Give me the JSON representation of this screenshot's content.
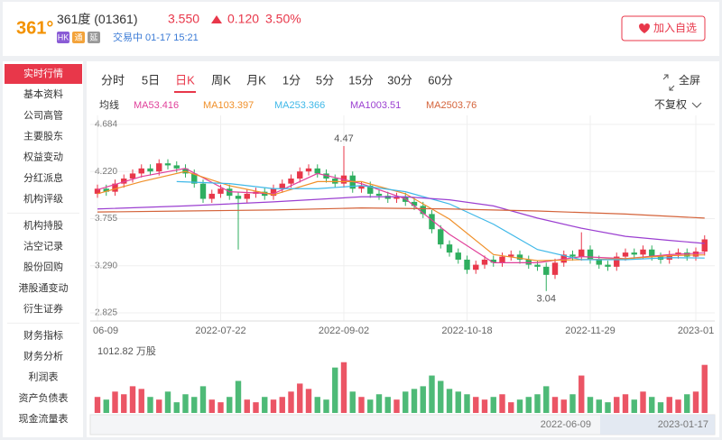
{
  "header": {
    "logo": "361°",
    "name": "361度",
    "code": "(01361)",
    "price": "3.550",
    "change": "0.120",
    "change_pct": "3.50%",
    "tags": [
      "HK",
      "通",
      "延"
    ],
    "status": "交易中 01-17 15:21",
    "button": "加入自选"
  },
  "sidebar": {
    "groups": [
      [
        "实时行情",
        "基本资料",
        "公司高管",
        "主要股东",
        "权益变动",
        "分红派息",
        "机构评级"
      ],
      [
        "机构持股",
        "沽空记录",
        "股份回购",
        "港股通变动",
        "衍生证券"
      ],
      [
        "财务指标",
        "财务分析",
        "利润表",
        "资产负债表",
        "现金流量表"
      ]
    ]
  },
  "tabs": {
    "items": [
      "分时",
      "5日",
      "日K",
      "周K",
      "月K",
      "1分",
      "5分",
      "15分",
      "30分",
      "60分"
    ],
    "fullscreen": "全屏",
    "ma_title": "均线",
    "adjust": "不复权"
  },
  "chart_data": {
    "type": "candlestick",
    "open": [
      4.0,
      4.05,
      4.02,
      4.1,
      4.15,
      4.2,
      4.25,
      4.22,
      4.3,
      4.28,
      4.25,
      4.2,
      4.1,
      3.95,
      4.0,
      4.05,
      3.98,
      3.95,
      4.0,
      4.02,
      3.98,
      4.05,
      4.1,
      4.15,
      4.22,
      4.25,
      4.2,
      4.15,
      4.1,
      4.18,
      4.05,
      4.08,
      4.0,
      3.98,
      3.95,
      3.97,
      3.92,
      3.88,
      3.8,
      3.65,
      3.5,
      3.42,
      3.35,
      3.25,
      3.3,
      3.35,
      3.32,
      3.38,
      3.4,
      3.35,
      3.3,
      3.28,
      3.2,
      3.32,
      3.4,
      3.38,
      3.45,
      3.35,
      3.3,
      3.28,
      3.38,
      3.42,
      3.4,
      3.45,
      3.38,
      3.35,
      3.4,
      3.42,
      3.38,
      3.43
    ],
    "high": [
      4.09,
      4.09,
      4.14,
      4.19,
      4.24,
      4.29,
      4.29,
      4.34,
      4.34,
      4.32,
      4.29,
      4.24,
      4.14,
      4.04,
      4.09,
      4.09,
      4.02,
      4.04,
      4.06,
      4.06,
      4.09,
      4.14,
      4.19,
      4.26,
      4.29,
      4.29,
      4.24,
      4.19,
      4.47,
      4.22,
      4.12,
      4.12,
      4.04,
      4.02,
      4.01,
      4.01,
      3.96,
      3.92,
      3.84,
      3.69,
      3.54,
      3.46,
      3.39,
      3.34,
      3.39,
      3.39,
      3.42,
      3.44,
      3.44,
      3.39,
      3.34,
      3.32,
      3.36,
      3.44,
      3.44,
      3.62,
      3.49,
      3.39,
      3.34,
      3.42,
      3.46,
      3.46,
      3.49,
      3.49,
      3.42,
      3.44,
      3.46,
      3.46,
      3.47,
      3.59
    ],
    "low": [
      3.96,
      3.98,
      3.98,
      4.06,
      4.11,
      4.16,
      4.18,
      4.18,
      4.24,
      4.21,
      4.16,
      4.06,
      3.91,
      3.91,
      3.96,
      3.94,
      3.45,
      3.91,
      3.96,
      3.94,
      3.94,
      4.01,
      4.06,
      4.11,
      4.18,
      4.16,
      4.11,
      4.06,
      4.06,
      4.01,
      4.01,
      3.96,
      3.94,
      3.91,
      3.91,
      3.88,
      3.84,
      3.76,
      3.61,
      3.46,
      3.38,
      3.31,
      3.21,
      3.21,
      3.26,
      3.28,
      3.28,
      3.34,
      3.31,
      3.26,
      3.24,
      3.04,
      3.16,
      3.28,
      3.34,
      3.34,
      3.31,
      3.26,
      3.24,
      3.24,
      3.34,
      3.36,
      3.36,
      3.34,
      3.31,
      3.31,
      3.36,
      3.34,
      3.34,
      3.39
    ],
    "close": [
      4.05,
      4.02,
      4.1,
      4.15,
      4.2,
      4.25,
      4.22,
      4.3,
      4.28,
      4.25,
      4.2,
      4.1,
      3.95,
      4.0,
      4.05,
      3.98,
      3.95,
      4.0,
      4.02,
      3.98,
      4.05,
      4.1,
      4.15,
      4.22,
      4.25,
      4.2,
      4.15,
      4.1,
      4.18,
      4.05,
      4.08,
      4.0,
      3.98,
      3.95,
      3.97,
      3.92,
      3.88,
      3.8,
      3.65,
      3.5,
      3.42,
      3.35,
      3.25,
      3.3,
      3.35,
      3.32,
      3.38,
      3.4,
      3.35,
      3.3,
      3.28,
      3.2,
      3.32,
      3.4,
      3.38,
      3.45,
      3.35,
      3.3,
      3.28,
      3.38,
      3.42,
      3.4,
      3.45,
      3.38,
      3.35,
      3.4,
      3.42,
      3.38,
      3.43,
      3.55
    ],
    "volume": [
      300,
      250,
      400,
      350,
      500,
      450,
      300,
      250,
      400,
      200,
      350,
      300,
      500,
      250,
      200,
      300,
      600,
      250,
      200,
      300,
      250,
      300,
      400,
      550,
      450,
      300,
      250,
      850,
      950,
      400,
      300,
      250,
      350,
      300,
      250,
      400,
      450,
      500,
      700,
      600,
      450,
      400,
      350,
      300,
      250,
      300,
      350,
      200,
      250,
      300,
      350,
      500,
      300,
      250,
      350,
      700,
      300,
      250,
      200,
      300,
      350,
      250,
      400,
      300,
      200,
      300,
      250,
      350,
      400,
      900
    ],
    "volume_max": 1012.82,
    "volume_unit": "万股",
    "up_color": "#e8374a",
    "down_color": "#2fae5f",
    "series": [
      {
        "name": "MA5",
        "color": "#e0409a",
        "latest": 3.416,
        "x": [
          0,
          5,
          10,
          15,
          20,
          25,
          30,
          35,
          40,
          45,
          50,
          55,
          60,
          65,
          69
        ],
        "values": [
          4.04,
          4.17,
          4.25,
          4.02,
          4.0,
          4.2,
          4.1,
          3.95,
          3.6,
          3.32,
          3.32,
          3.38,
          3.36,
          3.4,
          3.416
        ]
      },
      {
        "name": "MA10",
        "color": "#f0902a",
        "latest": 3.397,
        "x": [
          0,
          5,
          10,
          15,
          20,
          25,
          30,
          35,
          40,
          45,
          50,
          55,
          60,
          65,
          69
        ],
        "values": [
          4.0,
          4.12,
          4.22,
          4.08,
          3.99,
          4.12,
          4.12,
          4.0,
          3.75,
          3.4,
          3.34,
          3.35,
          3.36,
          3.39,
          3.397
        ]
      },
      {
        "name": "MA25",
        "color": "#3fb8e8",
        "latest": 3.366,
        "x": [
          9,
          15,
          20,
          25,
          30,
          35,
          40,
          45,
          50,
          55,
          60,
          65,
          69
        ],
        "values": [
          4.12,
          4.1,
          4.05,
          4.05,
          4.08,
          4.02,
          3.9,
          3.7,
          3.45,
          3.35,
          3.35,
          3.37,
          3.366
        ]
      },
      {
        "name": "MA100",
        "color": "#9b3fd1",
        "latest": 3.51,
        "x": [
          0,
          10,
          20,
          30,
          35,
          40,
          45,
          50,
          55,
          60,
          65,
          69
        ],
        "values": [
          3.85,
          3.88,
          3.92,
          3.97,
          3.97,
          3.94,
          3.88,
          3.76,
          3.66,
          3.58,
          3.54,
          3.51
        ]
      },
      {
        "name": "MA250",
        "color": "#d4633a",
        "latest": 3.76,
        "x": [
          0,
          10,
          20,
          30,
          40,
          50,
          60,
          69
        ],
        "values": [
          3.82,
          3.83,
          3.84,
          3.86,
          3.85,
          3.83,
          3.8,
          3.76
        ]
      }
    ],
    "ylim": [
      2.825,
      4.684
    ],
    "yticks": [
      4.684,
      {
        "value": 4.22,
        "label": "4.220"
      },
      3.755,
      {
        "value": 3.29,
        "label": "3.290"
      },
      2.825
    ],
    "xticks": [
      {
        "value": 0,
        "label": "06-09"
      },
      {
        "value": 14,
        "label": "2022-07-22"
      },
      {
        "value": 28,
        "label": "2022-09-02"
      },
      {
        "value": 42,
        "label": "2022-10-18"
      },
      {
        "value": 56,
        "label": "2022-11-29"
      },
      {
        "value": 68,
        "label": "2023-01"
      }
    ],
    "grid": true,
    "navigator": [
      "2022-06-09",
      "2023-01-17"
    ]
  }
}
